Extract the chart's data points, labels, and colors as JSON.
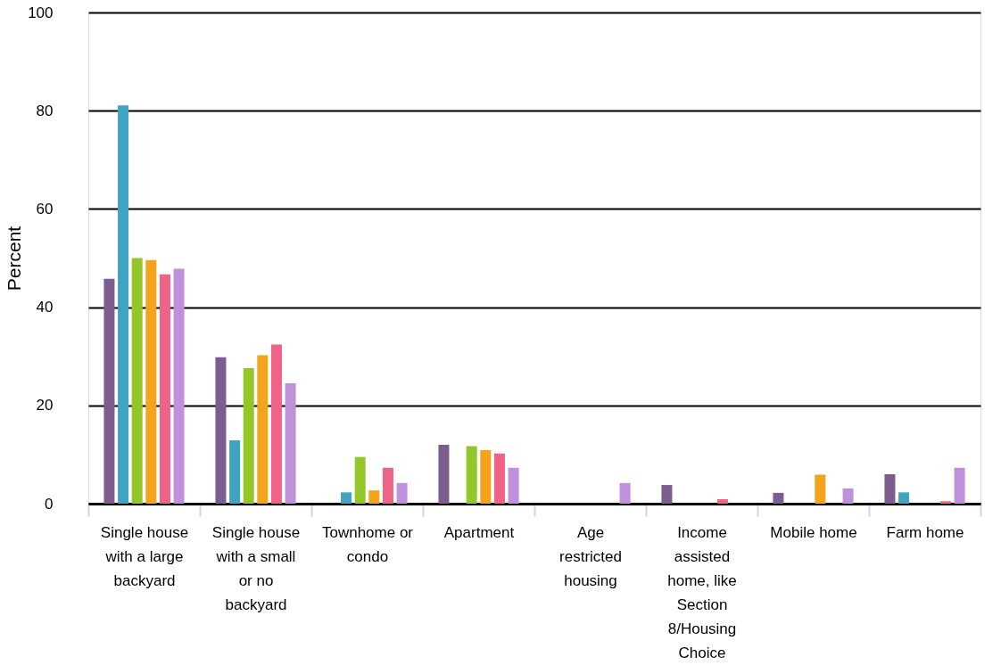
{
  "chart_data": {
    "type": "bar",
    "ylabel": "Percent",
    "categories": [
      "Single house with a large backyard",
      "Single house with a small or no backyard",
      "Townhome or condo",
      "Apartment",
      "Age restricted housing",
      "Income assisted home, like Section 8/Housing Choice",
      "Mobile home",
      "Farm home"
    ],
    "series": [
      {
        "color": "#7b5e8f",
        "values": [
          45.8,
          29.8,
          null,
          12.0,
          null,
          3.8,
          2.2,
          6.0
        ]
      },
      {
        "color": "#40a3c2",
        "values": [
          81.1,
          12.9,
          2.3,
          null,
          null,
          null,
          null,
          2.3
        ]
      },
      {
        "color": "#93c629",
        "values": [
          50.0,
          27.6,
          9.5,
          11.7,
          null,
          null,
          null,
          null
        ]
      },
      {
        "color": "#f4a41b",
        "values": [
          49.6,
          30.2,
          2.7,
          10.9,
          null,
          null,
          5.9,
          null
        ]
      },
      {
        "color": "#ef6387",
        "values": [
          46.7,
          32.4,
          7.3,
          10.2,
          null,
          0.9,
          null,
          0.5
        ]
      },
      {
        "color": "#c091db",
        "values": [
          47.8,
          24.5,
          4.2,
          7.3,
          4.2,
          null,
          3.1,
          7.3
        ]
      }
    ],
    "ylim": [
      0,
      100
    ],
    "yticks": [
      0,
      20,
      40,
      60,
      80,
      100
    ],
    "grid": "y",
    "legend": false
  }
}
